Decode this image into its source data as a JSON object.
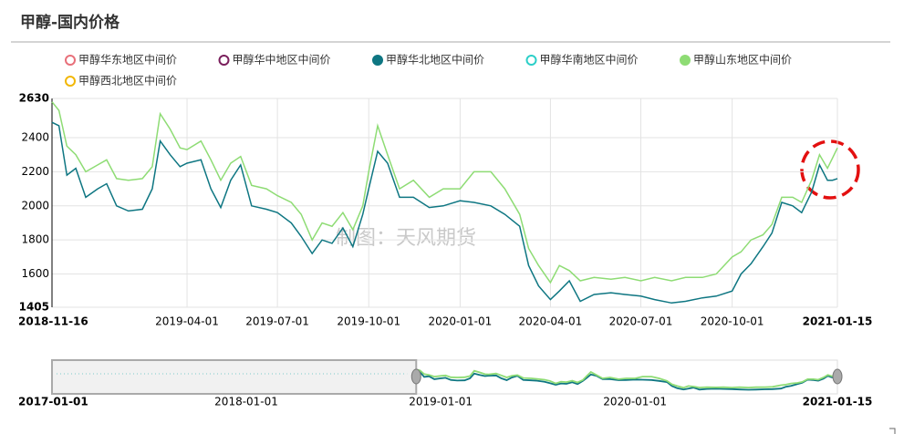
{
  "chart_data": {
    "type": "line",
    "title": "甲醇-国内价格",
    "watermark": "制图：天风期货",
    "xlim": [
      "2018-11-16",
      "2021-01-15"
    ],
    "xticks": [
      "2018-11-16",
      "2019-04-01",
      "2019-07-01",
      "2019-10-01",
      "2020-01-01",
      "2020-04-01",
      "2020-07-01",
      "2020-10-01",
      "2021-01-15"
    ],
    "ylim": [
      1405,
      2630
    ],
    "yticks": [
      1405,
      1600,
      1800,
      2000,
      2200,
      2400,
      2630
    ],
    "grid": true,
    "x": [
      "2018-11-16",
      "2018-11-23",
      "2018-12-01",
      "2018-12-10",
      "2018-12-20",
      "2019-01-01",
      "2019-01-10",
      "2019-01-20",
      "2019-02-01",
      "2019-02-15",
      "2019-02-25",
      "2019-03-05",
      "2019-03-15",
      "2019-03-25",
      "2019-04-01",
      "2019-04-15",
      "2019-04-25",
      "2019-05-05",
      "2019-05-15",
      "2019-05-25",
      "2019-06-05",
      "2019-06-20",
      "2019-07-01",
      "2019-07-15",
      "2019-07-25",
      "2019-08-05",
      "2019-08-15",
      "2019-08-25",
      "2019-09-05",
      "2019-09-15",
      "2019-09-25",
      "2019-10-01",
      "2019-10-10",
      "2019-10-20",
      "2019-11-01",
      "2019-11-15",
      "2019-12-01",
      "2019-12-15",
      "2020-01-01",
      "2020-01-15",
      "2020-02-01",
      "2020-02-15",
      "2020-03-01",
      "2020-03-10",
      "2020-03-20",
      "2020-04-01",
      "2020-04-10",
      "2020-04-20",
      "2020-05-01",
      "2020-05-15",
      "2020-06-01",
      "2020-06-15",
      "2020-07-01",
      "2020-07-15",
      "2020-08-01",
      "2020-08-15",
      "2020-09-01",
      "2020-09-15",
      "2020-10-01",
      "2020-10-10",
      "2020-10-20",
      "2020-11-01",
      "2020-11-10",
      "2020-11-20",
      "2020-12-01",
      "2020-12-10",
      "2020-12-20",
      "2020-12-28",
      "2021-01-05",
      "2021-01-10",
      "2021-01-15"
    ],
    "series": [
      {
        "name": "甲醇华东地区中间价",
        "color": "#e8707a",
        "visible": false
      },
      {
        "name": "甲醇华中地区中间价",
        "color": "#7a1f5c",
        "visible": false
      },
      {
        "name": "甲醇华北地区中间价",
        "color": "#0e7682",
        "visible": true,
        "values": [
          2490,
          2470,
          2180,
          2220,
          2050,
          2100,
          2130,
          2000,
          1970,
          1980,
          2100,
          2380,
          2300,
          2230,
          2250,
          2270,
          2100,
          1990,
          2150,
          2240,
          2000,
          1980,
          1960,
          1900,
          1820,
          1720,
          1800,
          1780,
          1870,
          1760,
          1950,
          2100,
          2320,
          2250,
          2050,
          2050,
          1990,
          2000,
          2030,
          2020,
          2000,
          1950,
          1880,
          1650,
          1530,
          1450,
          1500,
          1560,
          1440,
          1480,
          1490,
          1480,
          1470,
          1450,
          1430,
          1440,
          1460,
          1470,
          1500,
          1600,
          1660,
          1760,
          1840,
          2020,
          2000,
          1960,
          2080,
          2240,
          2150,
          2150,
          2160
        ]
      },
      {
        "name": "甲醇华南地区中间价",
        "color": "#2ccfc8",
        "visible": false
      },
      {
        "name": "甲醇山东地区中间价",
        "color": "#8edc74",
        "visible": true,
        "values": [
          2610,
          2560,
          2350,
          2300,
          2200,
          2240,
          2270,
          2160,
          2150,
          2160,
          2230,
          2540,
          2450,
          2340,
          2330,
          2380,
          2270,
          2150,
          2250,
          2290,
          2120,
          2100,
          2060,
          2020,
          1950,
          1800,
          1900,
          1880,
          1960,
          1860,
          2000,
          2200,
          2470,
          2300,
          2100,
          2150,
          2050,
          2100,
          2100,
          2200,
          2200,
          2100,
          1950,
          1750,
          1650,
          1550,
          1650,
          1620,
          1560,
          1580,
          1570,
          1580,
          1560,
          1580,
          1560,
          1580,
          1580,
          1600,
          1700,
          1730,
          1800,
          1830,
          1890,
          2050,
          2050,
          2020,
          2150,
          2300,
          2220,
          2280,
          2340
        ]
      },
      {
        "name": "甲醇西北地区中间价",
        "color": "#f2b705",
        "visible": false
      }
    ],
    "slider": {
      "xlim": [
        "2017-01-01",
        "2021-01-15"
      ],
      "xticks": [
        "2017-01-01",
        "2018-01-01",
        "2019-01-01",
        "2020-01-01",
        "2021-01-15"
      ]
    }
  }
}
